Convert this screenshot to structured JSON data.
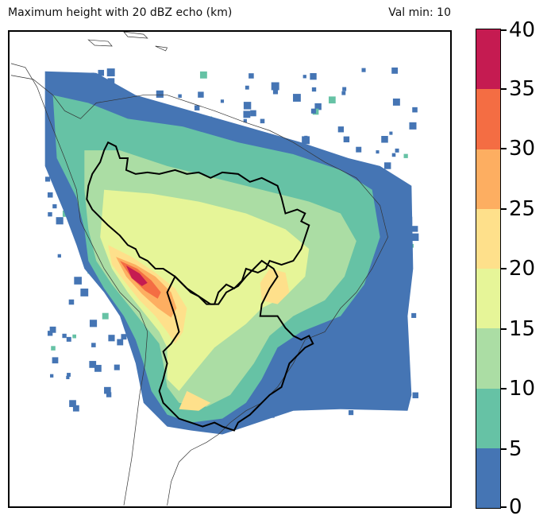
{
  "title": {
    "left": "Maximum height with 20 dBZ echo (km)",
    "right": "Val min: 10"
  },
  "colorbar": {
    "levels": [
      0,
      5,
      10,
      15,
      20,
      25,
      30,
      35,
      40
    ],
    "tick_labels": [
      "0",
      "5",
      "10",
      "15",
      "20",
      "25",
      "30",
      "35",
      "40"
    ],
    "colors": [
      "#4575b4",
      "#66c2a5",
      "#abdda4",
      "#e6f598",
      "#fee08b",
      "#fdae61",
      "#f46d43",
      "#c51b51"
    ]
  },
  "map": {
    "region": "South America",
    "outline_color": "#000000",
    "coastline_color": "#333333"
  }
}
